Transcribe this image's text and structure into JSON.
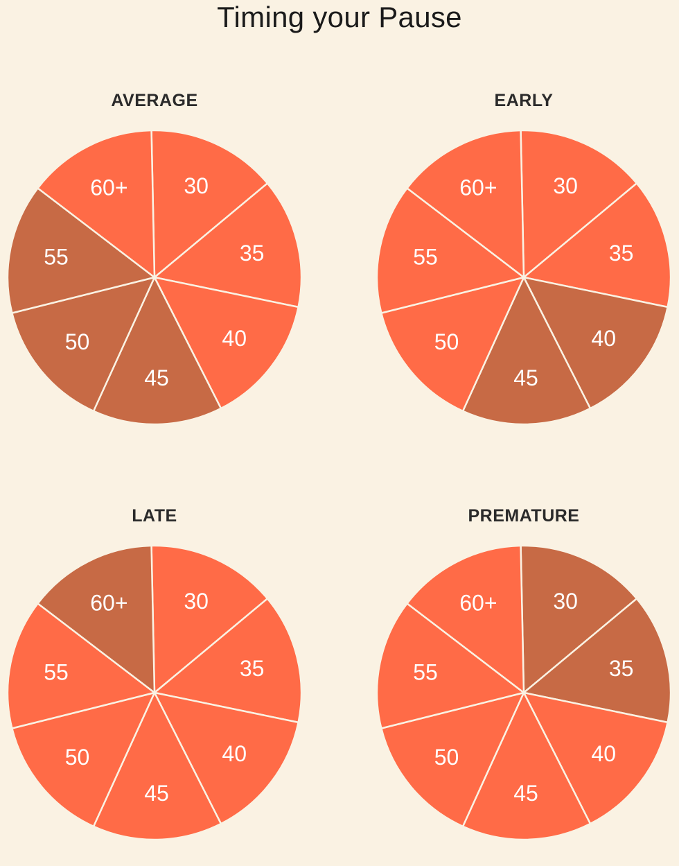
{
  "page_title": "Timing your Pause",
  "colors": {
    "normal": "#FF6B47",
    "highlight": "#C76A45",
    "background": "#FAF2E3"
  },
  "chart_data": [
    {
      "type": "pie",
      "title": "AVERAGE",
      "labels": [
        "30",
        "35",
        "40",
        "45",
        "50",
        "55",
        "60+"
      ],
      "values": [
        1,
        1,
        1,
        1,
        1,
        1,
        1
      ],
      "highlighted": [
        "45",
        "50",
        "55"
      ]
    },
    {
      "type": "pie",
      "title": "EARLY",
      "labels": [
        "30",
        "35",
        "40",
        "45",
        "50",
        "55",
        "60+"
      ],
      "values": [
        1,
        1,
        1,
        1,
        1,
        1,
        1
      ],
      "highlighted": [
        "40",
        "45"
      ]
    },
    {
      "type": "pie",
      "title": "LATE",
      "labels": [
        "30",
        "35",
        "40",
        "45",
        "50",
        "55",
        "60+"
      ],
      "values": [
        1,
        1,
        1,
        1,
        1,
        1,
        1
      ],
      "highlighted": [
        "60+"
      ]
    },
    {
      "type": "pie",
      "title": "PREMATURE",
      "labels": [
        "30",
        "35",
        "40",
        "45",
        "50",
        "55",
        "60+"
      ],
      "values": [
        1,
        1,
        1,
        1,
        1,
        1,
        1
      ],
      "highlighted": [
        "30",
        "35"
      ]
    }
  ]
}
